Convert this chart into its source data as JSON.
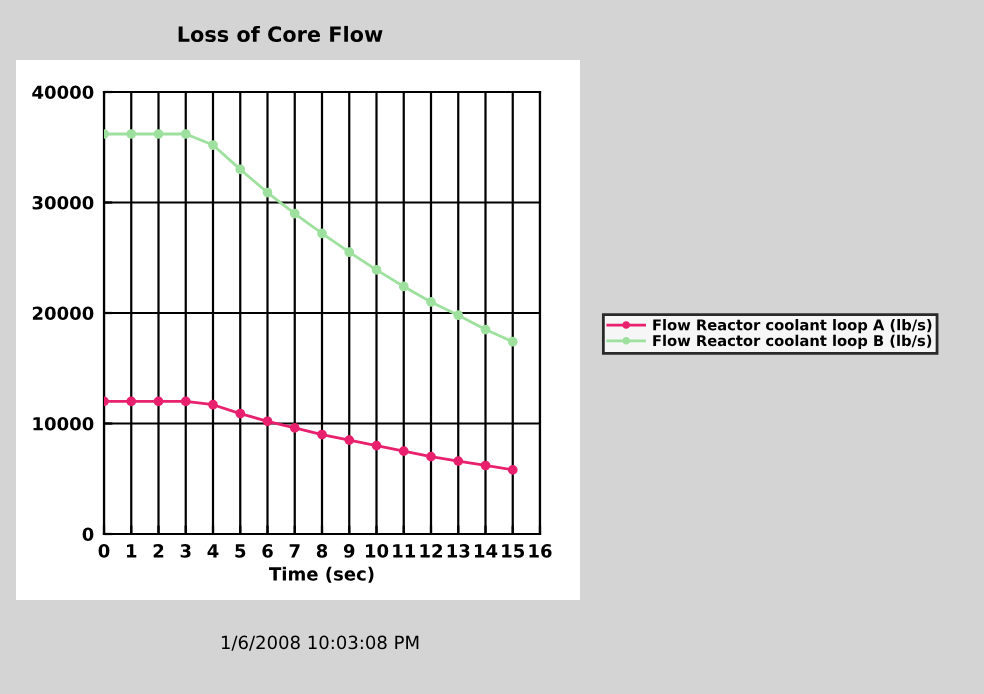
{
  "chart_data": {
    "type": "line",
    "title": "Loss of Core Flow",
    "xlabel": "Time (sec)",
    "x": [
      0,
      1,
      2,
      3,
      4,
      5,
      6,
      7,
      8,
      9,
      10,
      11,
      12,
      13,
      14,
      15
    ],
    "series": [
      {
        "name": "Flow Reactor coolant loop A (lb/s)",
        "color": "#e8206e",
        "values": [
          12000,
          12000,
          12000,
          12000,
          11700,
          10900,
          10200,
          9600,
          9000,
          8500,
          8000,
          7500,
          7000,
          6600,
          6200,
          5800
        ]
      },
      {
        "name": "Flow Reactor coolant loop B (lb/s)",
        "color": "#9ee09e",
        "values": [
          36200,
          36200,
          36200,
          36200,
          35200,
          33000,
          30900,
          29000,
          27200,
          25500,
          23900,
          22400,
          21000,
          19800,
          18500,
          17400
        ]
      }
    ],
    "xlim": [
      0,
      16
    ],
    "xticks": [
      0,
      1,
      2,
      3,
      4,
      5,
      6,
      7,
      8,
      9,
      10,
      11,
      12,
      13,
      14,
      15,
      16
    ],
    "ylim": [
      0,
      40000
    ],
    "yticks": [
      0,
      10000,
      20000,
      30000,
      40000
    ],
    "grid": true,
    "legend": "right",
    "marker": "circle",
    "line_style": "solid",
    "annotations": [
      "1/6/2008 10:03:08 PM"
    ]
  }
}
